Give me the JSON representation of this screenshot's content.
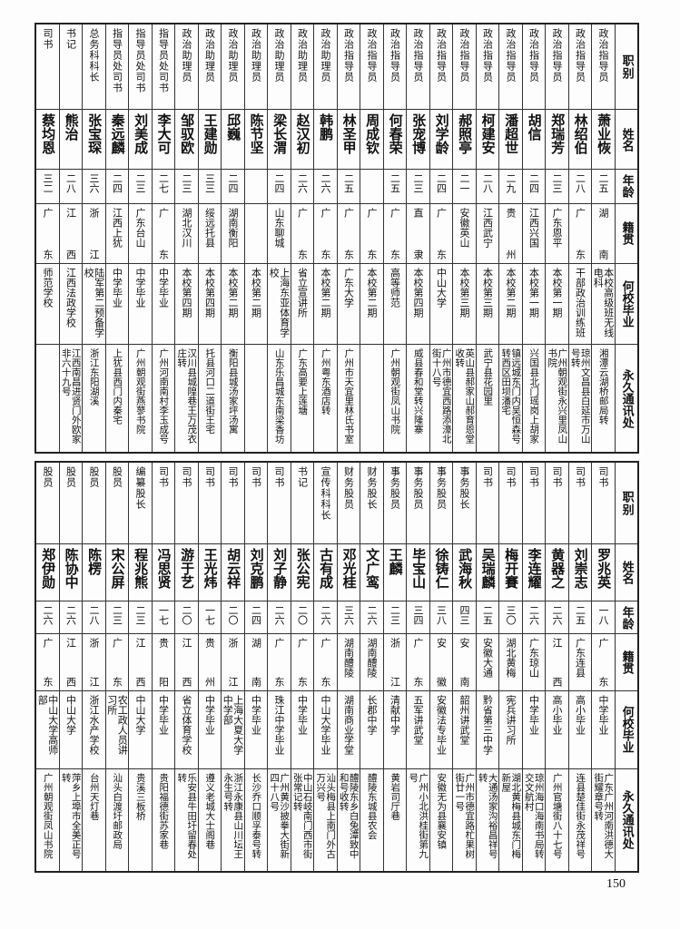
{
  "headers": [
    "职别",
    "姓名",
    "年龄",
    "籍贯",
    "何校毕业",
    "永久通讯处"
  ],
  "top": [
    [
      "政治指导员",
      "萧业恢",
      "二五",
      "湖南",
      "本校高级班无线电科",
      "湘潭云湖桥邮局转"
    ],
    [
      "政治指导员",
      "林绍伯",
      "二八",
      "广东",
      "干部政治训练班",
      "琼州文昌县白延市万山号转"
    ],
    [
      "政治指导员",
      "郑瑞芳",
      "二三",
      "广东恩平",
      "本校第一期",
      "广州朝观街永兴里凤山书院"
    ],
    [
      "政治指导员",
      "胡信",
      "二四",
      "江西兴国",
      "本校第一期",
      "兴国县北门瑶岗上胡家"
    ],
    [
      "政治指导员",
      "潘超世",
      "二九",
      "贵州",
      "本校第二期",
      "镇远城东门内吴恒森号转西区田坝潘宅"
    ],
    [
      "政治指导员",
      "柯建安",
      "二八",
      "江西武宁",
      "本校第三期",
      "武宁县花园里"
    ],
    [
      "政治指导员",
      "郝照亭",
      "二一",
      "安徽英山",
      "本校第三期",
      "英山县郝家山郝育恩堂收转"
    ],
    [
      "政治指导员",
      "刘学龄",
      "二四",
      "广东",
      "中山大学",
      "广州市德宜西路添濠北街十八号"
    ],
    [
      "政治指导员",
      "张宠博",
      "二三",
      "直隶",
      "本校第四期",
      "威县春和堂转兴隆寨"
    ],
    [
      "政治指导员",
      "何春荣",
      "二五",
      "广东",
      "高等师范",
      "广州朝观街凤山书院"
    ],
    [
      "政治指导员",
      "周成钦",
      "",
      "广东",
      "本校第二期",
      ""
    ],
    [
      "政治指导员",
      "林圣甲",
      "二五",
      "广东",
      "广东大学",
      "广州市天宜里林氏书室"
    ],
    [
      "政治助理员",
      "韩鹏",
      "二六",
      "广东",
      "本校第二期",
      "广州粤东酒店转"
    ],
    [
      "政治助理员",
      "赵汉初",
      "二六",
      "广东",
      "省立宣讲所",
      "广东高要上莲塘"
    ],
    [
      "政治助理员",
      "梁长渭",
      "二四",
      "山东聊城",
      "上海东亚体育学校",
      "山东乐昌城东南梁香坊"
    ],
    [
      "政治助理员",
      "陈节坚",
      "",
      "",
      "本校第二期",
      ""
    ],
    [
      "政治助理员",
      "邱巍",
      "二四",
      "湖南衡阳",
      "本校第二期",
      "衡阳县城汤家坪汤寓"
    ],
    [
      "政治助理员",
      "王建勋",
      "三三",
      "绥远托县",
      "本校第四期",
      "托县河口二道街王宅"
    ],
    [
      "政治助理员",
      "邹驭欧",
      "二三",
      "湖北汉川",
      "本校第四期",
      "汉川县城隍巷王万茂衣庄转"
    ],
    [
      "指导员处司书",
      "李大可",
      "二七",
      "广东",
      "中学毕业",
      "广州河南南村李玉成号"
    ],
    [
      "指导员处司书",
      "刘美成",
      "二三",
      "广东台山",
      "中学毕业",
      "广州朝观街燕蓼书院"
    ],
    [
      "指导员处司书",
      "秦远麟",
      "二四",
      "江西上犹",
      "中学毕业",
      "上犹县西门内秦宅"
    ],
    [
      "总务科科长",
      "张宝琛",
      "三六",
      "浙江",
      "陆军第二预备学校",
      "浙江东阳湖溪"
    ],
    [
      "书记",
      "熊治",
      "二八",
      "江西",
      "江西法政学校",
      "江西南昌进贤门外欧家非六十九号"
    ],
    [
      "司书",
      "蔡均恩",
      "三二",
      "广东",
      "师范学校",
      ""
    ]
  ],
  "bottom": [
    [
      "司书",
      "罗兆英",
      "一八",
      "广东",
      "中学毕业",
      "广东广州河南洪德大街耀章号转"
    ],
    [
      "司书",
      "刘崇志",
      "二五",
      "广东连县",
      "高小毕业",
      "连县楚佳街永茂祥号"
    ],
    [
      "司书",
      "黄器之",
      "二六",
      "江西",
      "高小毕业",
      "广州官塘街八十七号"
    ],
    [
      "司书",
      "李连耀",
      "二六",
      "广东琼山",
      "中学毕业",
      "琼州海口海南书局转交文航村"
    ],
    [
      "司书",
      "梅开賽",
      "三〇",
      "湖北黄梅",
      "宪兵讲习所",
      "湖北黄梅县城东门梅新屋"
    ],
    [
      "司书",
      "吴瑞麟",
      "二五",
      "安徽大通",
      "黔省第三中学",
      "大通汤家沟裕昌祥号转"
    ],
    [
      "事务股长",
      "武海秋",
      "四三",
      "安南",
      "韶州讲武堂",
      "广州市德宜路杧果树街廿一号"
    ],
    [
      "事务股员",
      "徐铸仁",
      "三八",
      "安徽",
      "安徽法专毕业",
      "安徽无为县襄安镇"
    ],
    [
      "事务股员",
      "毕宝山",
      "三四",
      "广东",
      "五军讲武堂",
      "广州小北洪桂街第九号"
    ],
    [
      "事务股员",
      "王麟",
      "二三",
      "浙江",
      "清献中学",
      "黄岩司厅巷"
    ],
    [
      "财务股长",
      "文广鸾",
      "二六",
      "湖南醴陵",
      "长郡中学",
      "醴陵东城县农会"
    ],
    [
      "财务股员",
      "邓光桂",
      "三六",
      "湖南醴陵",
      "湖南商业学堂",
      "醴陵东乡白兔潭致中和号收转"
    ],
    [
      "宣传科科长",
      "古有成",
      "二六",
      "广东",
      "中山大学毕业",
      "汕头梅县上南门外古万兴号"
    ],
    [
      "书记",
      "张公宪",
      "二〇",
      "广东",
      "中学毕业",
      "中山石岐南门西市街张常记转"
    ],
    [
      "司书",
      "刘子静",
      "二六",
      "广东",
      "珠江中学毕业",
      "广州黄沙披拳大街新四十八号"
    ],
    [
      "司书",
      "刘克鹏",
      "二四",
      "湖南",
      "中学毕业",
      "长沙乔口顺孚泰号转"
    ],
    [
      "司书",
      "胡云祥",
      "二〇",
      "浙江",
      "上海大夏大学中学部",
      "浙江永康县山川坛王永生号转"
    ],
    [
      "司书",
      "王光炜",
      "一七",
      "贵州",
      "中学毕业",
      "遵义老城大士阁巷"
    ],
    [
      "司书",
      "游于艺",
      "二〇",
      "江西",
      "省立体育学校",
      "乐安县牛田圩留春处转"
    ],
    [
      "司书",
      "冯思贤",
      "一七",
      "贵阳",
      "中学毕业",
      "贵阳福德街苏家巷"
    ],
    [
      "编纂股长",
      "程兆熊",
      "二三",
      "江西",
      "中山大学",
      "贵溪三板桥"
    ],
    [
      "股员",
      "宋公屏",
      "二三",
      "广东",
      "农工政人员讲习所",
      "汕头白渡圩邮政局"
    ],
    [
      "股员",
      "陈楞",
      "二八",
      "浙江",
      "浙江水产学校",
      "台州天灯巷"
    ],
    [
      "股员",
      "陈协中",
      "二六",
      "江西",
      "中山大学",
      "萍乡上埠市全美正号转"
    ],
    [
      "股员",
      "郑伊勋",
      "二六",
      "广东",
      "中山大学高师部",
      "广州朝观街凤山书院"
    ]
  ],
  "page_number": "150"
}
